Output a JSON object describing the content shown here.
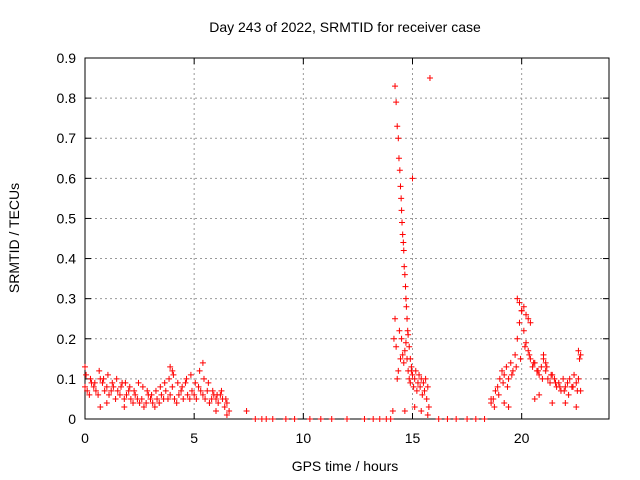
{
  "chart_data": {
    "type": "scatter",
    "title": "Day 243 of 2022, SRMTID for receiver case",
    "xlabel": "GPS time / hours",
    "ylabel": "SRMTID / TECUs",
    "xlim": [
      0,
      24
    ],
    "ylim": [
      0,
      0.9
    ],
    "xticks": [
      0,
      5,
      10,
      15,
      20
    ],
    "xtick_labels": [
      "0",
      "5",
      "10",
      "15",
      "20"
    ],
    "yticks": [
      0,
      0.1,
      0.2,
      0.3,
      0.4,
      0.5,
      0.6,
      0.7,
      0.8,
      0.9
    ],
    "ytick_labels": [
      "0",
      "0.1",
      "0.2",
      "0.3",
      "0.4",
      "0.5",
      "0.6",
      "0.7",
      "0.8",
      "0.9"
    ],
    "grid": true,
    "marker": "+",
    "colors": {
      "series": "#ff0000",
      "grid": "#999999",
      "axis": "#000000"
    },
    "series": [
      {
        "name": "SRMTID",
        "x": [
          0.0,
          0.1,
          0.2,
          0.3,
          0.4,
          0.5,
          0.6,
          0.7,
          0.8,
          0.9,
          1.0,
          1.1,
          1.2,
          1.3,
          1.4,
          1.5,
          1.6,
          1.7,
          1.8,
          1.9,
          2.0,
          2.1,
          2.2,
          2.3,
          2.4,
          2.5,
          2.6,
          2.7,
          2.8,
          2.9,
          3.0,
          3.1,
          3.2,
          3.3,
          3.4,
          3.5,
          3.6,
          3.7,
          3.8,
          3.9,
          4.0,
          4.1,
          4.2,
          4.3,
          4.4,
          4.5,
          4.6,
          4.7,
          4.8,
          4.9,
          5.0,
          5.1,
          5.2,
          5.3,
          5.4,
          5.5,
          5.6,
          5.7,
          5.8,
          5.9,
          6.0,
          6.1,
          6.2,
          6.3,
          6.4,
          6.5,
          0.05,
          0.25,
          0.45,
          0.65,
          0.85,
          1.05,
          1.25,
          1.45,
          1.65,
          1.85,
          2.05,
          2.25,
          2.45,
          2.65,
          2.85,
          3.05,
          3.25,
          3.45,
          3.65,
          3.85,
          4.05,
          4.25,
          4.45,
          4.65,
          4.85,
          5.05,
          5.25,
          5.45,
          5.65,
          5.85,
          6.05,
          6.25,
          6.45,
          0.0,
          3.9,
          4.0,
          5.4,
          1.0,
          0.7,
          1.8,
          6.0,
          6.5,
          6.6,
          7.4,
          7.8,
          8.1,
          8.3,
          8.6,
          9.2,
          9.6,
          10.3,
          10.8,
          11.3,
          12.0,
          12.8,
          13.2,
          13.5,
          13.8,
          14.0,
          14.1,
          14.15,
          14.2,
          14.25,
          14.3,
          14.35,
          14.4,
          14.45,
          14.5,
          14.55,
          14.6,
          14.65,
          14.7,
          14.75,
          14.8,
          14.85,
          14.9,
          14.95,
          15.0,
          15.05,
          15.1,
          15.15,
          15.2,
          15.25,
          15.3,
          15.35,
          15.4,
          15.45,
          15.5,
          15.55,
          15.6,
          15.65,
          15.7,
          15.75,
          15.8,
          14.2,
          14.25,
          14.3,
          14.35,
          14.38,
          14.42,
          14.45,
          14.48,
          14.5,
          14.52,
          14.55,
          14.58,
          14.6,
          14.62,
          14.65,
          14.68,
          14.7,
          14.72,
          14.75,
          14.78,
          14.8,
          14.85,
          14.9,
          14.95,
          15.0,
          14.65,
          15.1,
          15.4,
          15.7,
          16.2,
          16.6,
          17.0,
          17.5,
          17.9,
          18.3,
          18.6,
          18.7,
          18.8,
          18.9,
          19.0,
          19.1,
          19.2,
          19.3,
          19.4,
          19.5,
          19.6,
          19.7,
          19.8,
          19.9,
          20.0,
          20.1,
          20.2,
          20.3,
          20.4,
          20.5,
          20.6,
          20.7,
          20.8,
          20.9,
          21.0,
          21.1,
          21.2,
          21.3,
          21.4,
          21.5,
          21.6,
          21.7,
          21.8,
          21.9,
          22.0,
          22.1,
          22.2,
          22.3,
          22.4,
          22.5,
          22.6,
          22.7,
          18.75,
          18.95,
          19.15,
          19.35,
          19.55,
          19.75,
          19.95,
          20.15,
          20.35,
          20.55,
          20.75,
          20.95,
          21.15,
          21.35,
          21.55,
          21.75,
          21.95,
          22.15,
          22.35,
          22.55,
          19.8,
          19.9,
          20.0,
          20.1,
          20.2,
          20.3,
          20.4,
          21.0,
          21.1,
          22.6,
          22.65,
          22.7,
          18.6,
          19.2,
          20.6,
          21.4,
          22.0,
          22.5,
          19.4,
          20.8
        ],
        "y": [
          0.08,
          0.07,
          0.06,
          0.09,
          0.08,
          0.07,
          0.06,
          0.1,
          0.09,
          0.07,
          0.08,
          0.06,
          0.07,
          0.08,
          0.05,
          0.07,
          0.06,
          0.09,
          0.05,
          0.06,
          0.07,
          0.05,
          0.04,
          0.06,
          0.05,
          0.04,
          0.05,
          0.03,
          0.04,
          0.06,
          0.05,
          0.04,
          0.03,
          0.05,
          0.04,
          0.06,
          0.05,
          0.07,
          0.05,
          0.06,
          0.08,
          0.05,
          0.04,
          0.06,
          0.07,
          0.05,
          0.09,
          0.06,
          0.05,
          0.07,
          0.06,
          0.05,
          0.08,
          0.07,
          0.06,
          0.05,
          0.07,
          0.04,
          0.05,
          0.06,
          0.05,
          0.04,
          0.06,
          0.05,
          0.03,
          0.04,
          0.11,
          0.1,
          0.09,
          0.12,
          0.1,
          0.11,
          0.09,
          0.1,
          0.08,
          0.09,
          0.08,
          0.07,
          0.09,
          0.08,
          0.07,
          0.06,
          0.07,
          0.08,
          0.09,
          0.1,
          0.11,
          0.09,
          0.08,
          0.1,
          0.11,
          0.09,
          0.12,
          0.1,
          0.09,
          0.07,
          0.06,
          0.07,
          0.05,
          0.13,
          0.13,
          0.12,
          0.14,
          0.04,
          0.03,
          0.03,
          0.02,
          0.01,
          0.02,
          0.02,
          0.0,
          0.0,
          0.0,
          0.0,
          0.0,
          0.0,
          0.0,
          0.0,
          0.0,
          0.0,
          0.0,
          0.0,
          0.0,
          0.0,
          0.0,
          0.02,
          0.2,
          0.25,
          0.18,
          0.1,
          0.12,
          0.22,
          0.15,
          0.2,
          0.16,
          0.14,
          0.17,
          0.19,
          0.15,
          0.12,
          0.1,
          0.09,
          0.13,
          0.11,
          0.08,
          0.1,
          0.12,
          0.07,
          0.09,
          0.11,
          0.08,
          0.1,
          0.06,
          0.09,
          0.07,
          0.1,
          0.05,
          0.08,
          0.03,
          0.85,
          0.83,
          0.79,
          0.73,
          0.7,
          0.65,
          0.62,
          0.58,
          0.55,
          0.52,
          0.49,
          0.46,
          0.44,
          0.42,
          0.38,
          0.36,
          0.33,
          0.3,
          0.28,
          0.25,
          0.22,
          0.21,
          0.18,
          0.15,
          0.12,
          0.6,
          0.02,
          0.03,
          0.02,
          0.01,
          0.0,
          0.0,
          0.0,
          0.0,
          0.0,
          0.0,
          0.04,
          0.05,
          0.07,
          0.08,
          0.1,
          0.12,
          0.11,
          0.13,
          0.1,
          0.14,
          0.12,
          0.16,
          0.2,
          0.24,
          0.27,
          0.22,
          0.19,
          0.17,
          0.15,
          0.13,
          0.14,
          0.12,
          0.11,
          0.13,
          0.15,
          0.12,
          0.1,
          0.09,
          0.11,
          0.1,
          0.08,
          0.09,
          0.07,
          0.1,
          0.08,
          0.09,
          0.1,
          0.08,
          0.11,
          0.09,
          0.1,
          0.07,
          0.03,
          0.06,
          0.09,
          0.08,
          0.11,
          0.13,
          0.15,
          0.18,
          0.16,
          0.14,
          0.12,
          0.1,
          0.13,
          0.11,
          0.09,
          0.08,
          0.07,
          0.06,
          0.08,
          0.07,
          0.3,
          0.29,
          0.27,
          0.28,
          0.26,
          0.25,
          0.24,
          0.16,
          0.14,
          0.17,
          0.15,
          0.16,
          0.05,
          0.04,
          0.05,
          0.04,
          0.04,
          0.03,
          0.03,
          0.06
        ]
      }
    ]
  }
}
